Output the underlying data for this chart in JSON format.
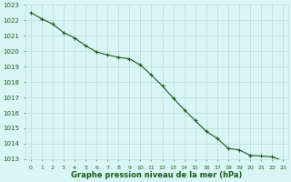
{
  "x": [
    0,
    1,
    2,
    3,
    4,
    5,
    6,
    7,
    8,
    9,
    10,
    11,
    12,
    13,
    14,
    15,
    16,
    17,
    18,
    19,
    20,
    21,
    22,
    23
  ],
  "y": [
    1022.5,
    1022.1,
    1021.75,
    1021.2,
    1020.85,
    1020.35,
    1019.95,
    1019.75,
    1019.6,
    1019.5,
    1019.1,
    1018.45,
    1017.75,
    1016.95,
    1016.2,
    1015.5,
    1014.8,
    1014.35,
    1013.7,
    1013.6,
    1013.25,
    1013.2,
    1013.15,
    1012.9
  ],
  "line_color": "#1a5c1a",
  "marker": "+",
  "marker_size": 3,
  "marker_color": "#1a5c1a",
  "bg_color": "#d9f5f5",
  "grid_color": "#b8dada",
  "xlabel": "Graphe pression niveau de la mer (hPa)",
  "xlabel_color": "#1a5c1a",
  "tick_color": "#1a5c1a",
  "ylim": [
    1013,
    1023
  ],
  "xlim_min": -0.5,
  "xlim_max": 23.5,
  "yticks": [
    1013,
    1014,
    1015,
    1016,
    1017,
    1018,
    1019,
    1020,
    1021,
    1022,
    1023
  ],
  "xticks": [
    0,
    1,
    2,
    3,
    4,
    5,
    6,
    7,
    8,
    9,
    10,
    11,
    12,
    13,
    14,
    15,
    16,
    17,
    18,
    19,
    20,
    21,
    22,
    23
  ],
  "linewidth": 0.8,
  "figsize": [
    3.2,
    2.0
  ],
  "dpi": 100
}
